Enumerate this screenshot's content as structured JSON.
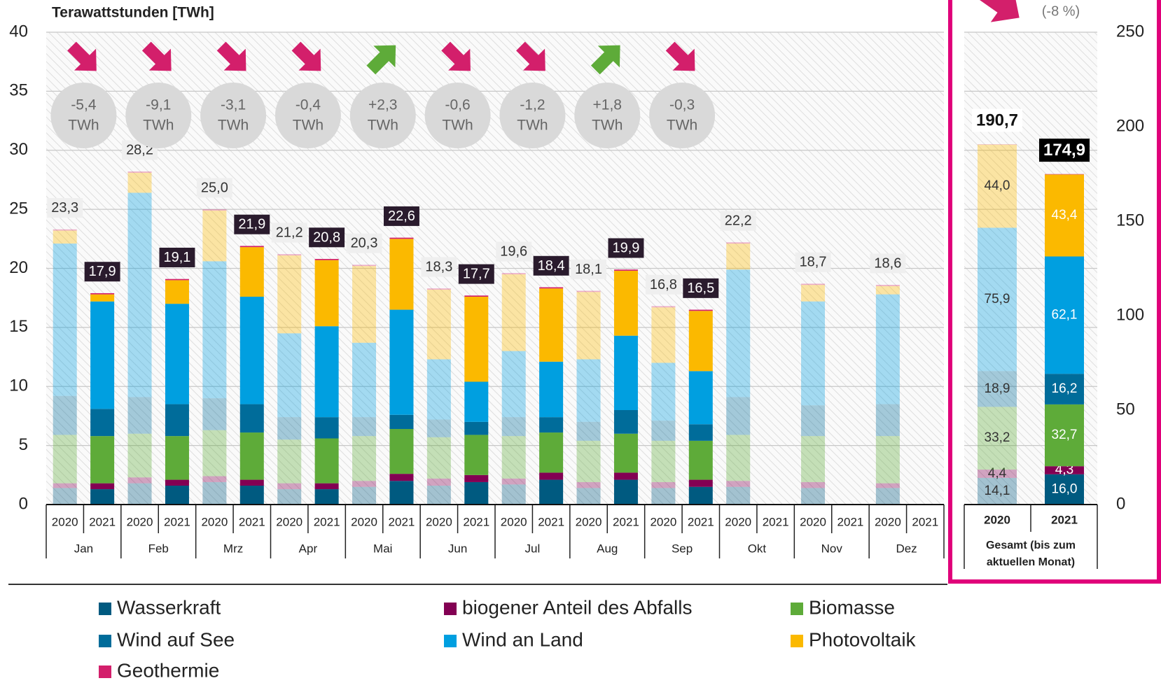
{
  "chart_data": [
    {
      "type": "bar",
      "stacked": true,
      "y_label": "Terawattstunden [TWh]",
      "groups": [
        "Jan",
        "Feb",
        "Mrz",
        "Apr",
        "Mai",
        "Jun",
        "Jul",
        "Aug",
        "Sep",
        "Okt",
        "Nov",
        "Dez"
      ],
      "categories": [
        "2020",
        "2021",
        "2020",
        "2021",
        "2020",
        "2021",
        "2020",
        "2021",
        "2020",
        "2021",
        "2020",
        "2021",
        "2020",
        "2021",
        "2020",
        "2021",
        "2020",
        "2021",
        "2020",
        "2021",
        "2020",
        "2021",
        "2020",
        "2021"
      ],
      "series": [
        {
          "name": "Wasserkraft",
          "color": "#005a80",
          "values": [
            1.4,
            1.3,
            1.8,
            1.6,
            1.9,
            1.6,
            1.3,
            1.3,
            1.5,
            2.0,
            1.6,
            1.9,
            1.7,
            2.1,
            1.4,
            2.1,
            1.4,
            1.5,
            1.5,
            null,
            1.4,
            null,
            1.4,
            null
          ]
        },
        {
          "name": "biogener Anteil des Abfalls",
          "color": "#830053",
          "values": [
            0.4,
            0.5,
            0.5,
            0.5,
            0.5,
            0.5,
            0.5,
            0.5,
            0.5,
            0.6,
            0.6,
            0.6,
            0.5,
            0.6,
            0.5,
            0.6,
            0.5,
            0.6,
            0.5,
            null,
            0.5,
            null,
            0.4,
            null
          ]
        },
        {
          "name": "Biomasse",
          "color": "#5eab39",
          "values": [
            4.1,
            4.0,
            3.7,
            3.7,
            3.9,
            4.0,
            3.7,
            3.8,
            3.8,
            3.8,
            3.5,
            3.4,
            3.6,
            3.4,
            3.5,
            3.3,
            3.5,
            3.3,
            3.9,
            null,
            3.9,
            null,
            4.0,
            null
          ]
        },
        {
          "name": "Wind auf See",
          "color": "#006c9a",
          "values": [
            3.3,
            2.3,
            3.1,
            2.7,
            2.7,
            2.4,
            1.9,
            1.8,
            1.6,
            1.2,
            1.5,
            1.1,
            1.6,
            1.3,
            1.6,
            2.0,
            1.7,
            1.4,
            3.2,
            null,
            2.6,
            null,
            2.7,
            null
          ]
        },
        {
          "name": "Wind an Land",
          "color": "#009fe0",
          "values": [
            12.9,
            9.1,
            17.3,
            8.5,
            11.6,
            9.1,
            7.1,
            7.7,
            6.3,
            8.9,
            5.1,
            3.4,
            5.6,
            4.7,
            5.3,
            6.3,
            4.9,
            4.5,
            10.8,
            null,
            8.8,
            null,
            9.3,
            null
          ]
        },
        {
          "name": "Photovoltaik",
          "color": "#fbb900",
          "values": [
            1.1,
            0.6,
            1.7,
            2.0,
            4.3,
            4.2,
            6.6,
            5.6,
            6.5,
            6.0,
            5.9,
            7.2,
            6.5,
            6.2,
            5.7,
            5.5,
            4.7,
            5.1,
            2.2,
            null,
            1.4,
            null,
            0.7,
            null
          ]
        },
        {
          "name": "Geothermie",
          "color": "#d31f6b",
          "values": [
            0.1,
            0.1,
            0.1,
            0.1,
            0.1,
            0.1,
            0.1,
            0.1,
            0.1,
            0.1,
            0.1,
            0.1,
            0.1,
            0.1,
            0.1,
            0.1,
            0.1,
            0.1,
            0.1,
            null,
            0.1,
            null,
            0.1,
            null
          ]
        }
      ],
      "totals": [
        23.3,
        17.9,
        28.2,
        19.1,
        25.0,
        21.9,
        21.2,
        20.8,
        20.3,
        22.6,
        18.3,
        17.7,
        19.6,
        18.4,
        18.1,
        19.9,
        16.8,
        16.5,
        22.2,
        null,
        18.7,
        null,
        18.6,
        null
      ],
      "total_labels": [
        "23,3",
        "17,9",
        "28,2",
        "19,1",
        "25,0",
        "21,9",
        "21,2",
        "20,8",
        "20,3",
        "22,6",
        "18,3",
        "17,7",
        "19,6",
        "18,4",
        "18,1",
        "19,9",
        "16,8",
        "16,5",
        "22,2",
        null,
        "18,7",
        null,
        "18,6",
        null
      ],
      "changes": {
        "values": [
          -5.4,
          -9.1,
          -3.1,
          -0.4,
          2.3,
          -0.6,
          -1.2,
          1.8,
          -0.3
        ],
        "labels": [
          "-5,4",
          "-9,1",
          "-3,1",
          "-0,4",
          "+2,3",
          "-0,6",
          "-1,2",
          "+1,8",
          "-0,3"
        ],
        "unit": "TWh",
        "down_color": "#d31f6b",
        "up_color": "#5eab39"
      },
      "ylim": [
        0,
        40
      ],
      "yticks": [
        0,
        5,
        10,
        15,
        20,
        25,
        30,
        35,
        40
      ],
      "grid": true
    },
    {
      "type": "bar",
      "stacked": true,
      "group": "Gesamt (bis zum aktuellen Monat)",
      "categories": [
        "2020",
        "2021"
      ],
      "series": [
        {
          "values": [
            14.1,
            16.0
          ],
          "value_labels": [
            "14,1",
            "16,0"
          ]
        },
        {
          "values": [
            4.4,
            4.3
          ],
          "value_labels": [
            "4,4",
            "4,3"
          ]
        },
        {
          "values": [
            33.2,
            32.7
          ],
          "value_labels": [
            "33,2",
            "32,7"
          ]
        },
        {
          "values": [
            18.9,
            16.2
          ],
          "value_labels": [
            "18,9",
            "16,2"
          ]
        },
        {
          "values": [
            75.9,
            62.1
          ],
          "value_labels": [
            "75,9",
            "62,1"
          ]
        },
        {
          "values": [
            44.0,
            43.4
          ],
          "value_labels": [
            "44,0",
            "43,4"
          ]
        },
        {
          "values": [
            0.2,
            0.2
          ]
        }
      ],
      "totals": [
        190.7,
        174.9
      ],
      "total_labels": [
        "190,7",
        "174,9"
      ],
      "change": {
        "value": -8,
        "label": "(-8 %)"
      },
      "ylim": [
        0,
        250
      ],
      "yticks": [
        0,
        50,
        100,
        150,
        200,
        250
      ]
    }
  ]
}
